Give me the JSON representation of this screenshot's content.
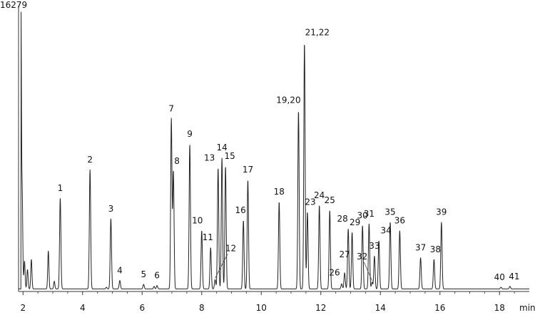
{
  "chart_data": {
    "type": "line",
    "ymax_label": "16279",
    "x_unit_label": "min",
    "xlim": [
      1.85,
      19.0
    ],
    "ylim": [
      0,
      16279
    ],
    "x_ticks": [
      2,
      4,
      6,
      8,
      10,
      12,
      14,
      16,
      18
    ],
    "x_tick_labels": [
      "2",
      "4",
      "6",
      "8",
      "10",
      "12",
      "14",
      "16",
      "18"
    ],
    "grid": false,
    "baseline": 150,
    "solvent_peaks": [
      {
        "x": 1.93,
        "y": 16279,
        "w": 0.015
      },
      {
        "x": 1.97,
        "y": 6100,
        "w": 0.02
      },
      {
        "x": 2.05,
        "y": 1800,
        "w": 0.02
      },
      {
        "x": 2.15,
        "y": 1300,
        "w": 0.02
      },
      {
        "x": 2.28,
        "y": 1900,
        "w": 0.02
      },
      {
        "x": 2.85,
        "y": 2400,
        "w": 0.02
      },
      {
        "x": 3.05,
        "y": 600,
        "w": 0.02
      },
      {
        "x": 4.8,
        "y": 250,
        "w": 0.02
      },
      {
        "x": 6.4,
        "y": 300,
        "w": 0.02
      }
    ],
    "peaks": [
      {
        "label": "1",
        "x": 3.25,
        "y": 5500
      },
      {
        "label": "2",
        "x": 4.25,
        "y": 7200
      },
      {
        "label": "3",
        "x": 4.95,
        "y": 4300
      },
      {
        "label": "4",
        "x": 5.25,
        "y": 650
      },
      {
        "label": "5",
        "x": 6.05,
        "y": 420
      },
      {
        "label": "6",
        "x": 6.5,
        "y": 350
      },
      {
        "label": "7",
        "x": 6.98,
        "y": 10200
      },
      {
        "label": "8",
        "x": 7.05,
        "y": 7100
      },
      {
        "label": "9",
        "x": 7.6,
        "y": 8700
      },
      {
        "label": "10",
        "x": 8.0,
        "y": 3600
      },
      {
        "label": "11",
        "x": 8.3,
        "y": 2600
      },
      {
        "label": "12",
        "x": 8.45,
        "y": 700
      },
      {
        "label": "13",
        "x": 8.55,
        "y": 7300
      },
      {
        "label": "14",
        "x": 8.68,
        "y": 7900
      },
      {
        "label": "15",
        "x": 8.8,
        "y": 7400
      },
      {
        "label": "16",
        "x": 9.4,
        "y": 4200
      },
      {
        "label": "17",
        "x": 9.55,
        "y": 6600
      },
      {
        "label": "18",
        "x": 10.6,
        "y": 5300
      },
      {
        "label": "19,20",
        "x": 11.25,
        "y": 10700
      },
      {
        "label": "21,22",
        "x": 11.45,
        "y": 14700
      },
      {
        "label": "23",
        "x": 11.55,
        "y": 4700
      },
      {
        "label": "24",
        "x": 11.95,
        "y": 5100
      },
      {
        "label": "25",
        "x": 12.3,
        "y": 4800
      },
      {
        "label": "26",
        "x": 12.7,
        "y": 450
      },
      {
        "label": "27",
        "x": 12.8,
        "y": 1100
      },
      {
        "label": "28",
        "x": 12.92,
        "y": 3700
      },
      {
        "label": "29",
        "x": 13.05,
        "y": 3500
      },
      {
        "label": "30",
        "x": 13.4,
        "y": 3900
      },
      {
        "label": "31",
        "x": 13.62,
        "y": 4000
      },
      {
        "label": "32",
        "x": 13.72,
        "y": 550
      },
      {
        "label": "33",
        "x": 13.8,
        "y": 2100
      },
      {
        "label": "34",
        "x": 13.95,
        "y": 3000
      },
      {
        "label": "35",
        "x": 14.33,
        "y": 4100
      },
      {
        "label": "36",
        "x": 14.65,
        "y": 3600
      },
      {
        "label": "37",
        "x": 15.35,
        "y": 2000
      },
      {
        "label": "38",
        "x": 15.8,
        "y": 1900
      },
      {
        "label": "39",
        "x": 16.05,
        "y": 4100
      },
      {
        "label": "40",
        "x": 18.05,
        "y": 250
      },
      {
        "label": "41",
        "x": 18.35,
        "y": 300
      }
    ]
  }
}
